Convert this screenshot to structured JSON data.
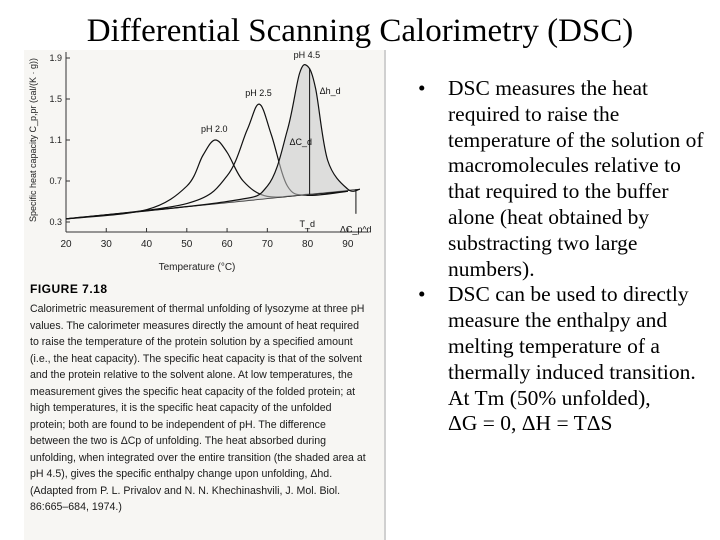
{
  "slide": {
    "title": "Differential Scanning Calorimetry (DSC)",
    "bullets": [
      "DSC measures the heat required to raise the temperature of the solution of macromolecules relative to that required to the buffer alone (heat obtained by substracting two large numbers).",
      "DSC can be used to directly measure the enthalpy and melting temperature of a thermally induced transition."
    ],
    "extra_lines": [
      "At Tm (50% unfolded),",
      "ΔG = 0, ΔH = TΔS"
    ],
    "bullet_glyph": "•"
  },
  "figure": {
    "ylabel": "Specific heat capacity C_p,pr (cal/(K · g))",
    "xlabel": "Temperature (°C)",
    "x_ticks": [
      "20",
      "30",
      "40",
      "50",
      "60",
      "70",
      "80",
      "90"
    ],
    "y_ticks": [
      "1.9",
      "1.5",
      "1.1",
      "0.7",
      "0.3"
    ],
    "curve_labels": [
      "pH 2.0",
      "pH 2.5",
      "pH 4.5"
    ],
    "annotations": [
      "Δh_d",
      "ΔC_d",
      "T_d",
      "ΔC_p^d"
    ],
    "caption_title": "FIGURE 7.18",
    "caption_text": "Calorimetric measurement of thermal unfolding of lysozyme at three pH values. The calorimeter measures directly the amount of heat required to raise the temperature of the protein solution by a specified amount (i.e., the heat capacity). The specific heat capacity is that of the solvent and the protein relative to the solvent alone. At low temperatures, the measurement gives the specific heat capacity of the folded protein; at high temperatures, it is the specific heat capacity of the unfolded protein; both are found to be independent of pH. The difference between the two is ΔCp of unfolding. The heat absorbed during unfolding, when integrated over the entire transition (the shaded area at pH 4.5), gives the specific enthalpy change upon unfolding, Δhd. (Adapted from P. L. Privalov and N. N. Khechinashvili, J. Mol. Biol. 86:665–684, 1974.)"
  },
  "chart_data": {
    "type": "line",
    "xlabel": "Temperature (°C)",
    "ylabel": "Specific heat capacity C_p,pr (cal/(K · g))",
    "xlim": [
      20,
      95
    ],
    "ylim": [
      0.3,
      1.9
    ],
    "series": [
      {
        "name": "pH 2.0",
        "x": [
          20,
          40,
          50,
          54,
          57,
          60,
          64,
          70,
          80,
          90
        ],
        "y": [
          0.33,
          0.42,
          0.65,
          0.95,
          1.1,
          0.98,
          0.7,
          0.55,
          0.57,
          0.6
        ]
      },
      {
        "name": "pH 2.5",
        "x": [
          20,
          50,
          60,
          65,
          68,
          71,
          75,
          80,
          90
        ],
        "y": [
          0.33,
          0.48,
          0.75,
          1.2,
          1.45,
          1.15,
          0.65,
          0.56,
          0.6
        ]
      },
      {
        "name": "pH 4.5",
        "x": [
          20,
          60,
          70,
          75,
          78,
          80,
          82,
          85,
          90,
          93
        ],
        "y": [
          0.33,
          0.5,
          0.65,
          1.2,
          1.75,
          1.82,
          1.6,
          0.9,
          0.62,
          0.62
        ]
      }
    ]
  }
}
